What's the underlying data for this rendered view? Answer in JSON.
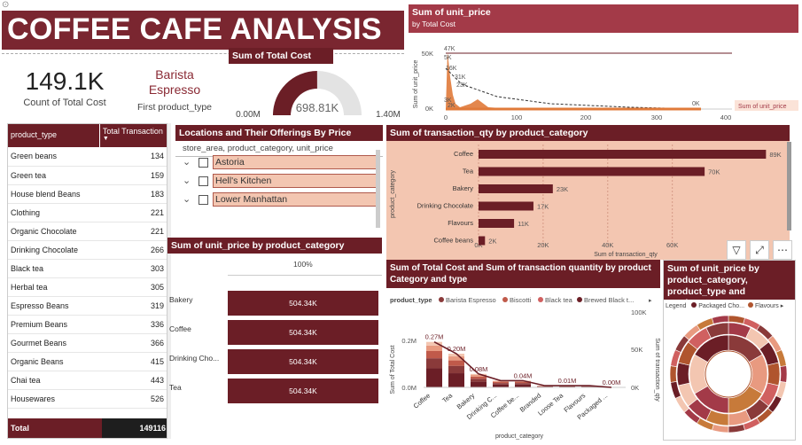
{
  "title": "COFFEE CAFE ANALYSIS",
  "kpi_count": {
    "value": "149.1K",
    "label": "Count of Total Cost"
  },
  "kpi_first": {
    "value_line1": "Barista",
    "value_line2": "Espresso",
    "label": "First product_type"
  },
  "gauge": {
    "title": "Sum of Total Cost",
    "value": "698.81K",
    "min_label": "0.00M",
    "max_label": "1.40M",
    "fraction": 0.499
  },
  "product_table": {
    "col1": "product_type",
    "col2": "Total Transaction",
    "rows": [
      {
        "name": "Green beans",
        "value": "134"
      },
      {
        "name": "Green tea",
        "value": "159"
      },
      {
        "name": "House blend Beans",
        "value": "183"
      },
      {
        "name": "Clothing",
        "value": "221"
      },
      {
        "name": "Organic Chocolate",
        "value": "221"
      },
      {
        "name": "Drinking Chocolate",
        "value": "266"
      },
      {
        "name": "Black tea",
        "value": "303"
      },
      {
        "name": "Herbal tea",
        "value": "305"
      },
      {
        "name": "Espresso Beans",
        "value": "319"
      },
      {
        "name": "Premium Beans",
        "value": "336"
      },
      {
        "name": "Gourmet Beans",
        "value": "366"
      },
      {
        "name": "Organic Beans",
        "value": "415"
      },
      {
        "name": "Chai tea",
        "value": "443"
      },
      {
        "name": "Housewares",
        "value": "526"
      }
    ],
    "total_label": "Total",
    "total_value": "149116"
  },
  "slicer": {
    "title": "Locations and Their Offerings By Price",
    "subtitle": "store_area, product_category, unit_price",
    "items": [
      "Astoria",
      "Hell's Kitchen",
      "Lower Manhattan"
    ]
  },
  "unit_price_chart": {
    "title": "Sum of unit_price",
    "subtitle": "by Total Cost",
    "ylabel": "Sum of unit_price",
    "legend": "Sum of unit_price",
    "y_ticks": [
      "50K",
      "0K"
    ],
    "x_ticks": [
      "0",
      "100",
      "200",
      "300",
      "400"
    ],
    "labels": [
      "47K",
      "5K",
      "16K",
      "31K",
      "23K",
      "3K",
      "2K",
      "0K",
      "0K"
    ]
  },
  "chart_data": [
    {
      "type": "bar",
      "title": "Sum of transaction_qty by product_category",
      "xlabel": "Sum of transaction_qty",
      "ylabel": "product_category",
      "categories": [
        "Coffee",
        "Tea",
        "Bakery",
        "Drinking Chocolate",
        "Flavours",
        "Coffee beans"
      ],
      "values": [
        89,
        70,
        23,
        17,
        11,
        2
      ],
      "value_labels": [
        "89K",
        "70K",
        "23K",
        "17K",
        "11K",
        "2K"
      ],
      "x_ticks": [
        "0K",
        "20K",
        "40K",
        "60K"
      ],
      "xlim": [
        0,
        90
      ]
    },
    {
      "type": "bar",
      "title": "Sum of unit_price by product_category",
      "categories": [
        "Bakery",
        "Coffee",
        "Drinking Cho...",
        "Tea"
      ],
      "values": [
        504.34,
        504.34,
        504.34,
        504.34
      ],
      "value_labels": [
        "504.34K",
        "504.34K",
        "504.34K",
        "504.34K"
      ],
      "header_label": "100%"
    },
    {
      "type": "bar",
      "title": "Sum of Total Cost and Sum of transaction quantity by product Category and type",
      "legend_title": "product_type",
      "legend": [
        "Barista Espresso",
        "Biscotti",
        "Black tea",
        "Brewed Black t..."
      ],
      "legend_colors": [
        "#8a3a3a",
        "#c05a4a",
        "#d06060",
        "#6b1e26"
      ],
      "categories": [
        "Coffee",
        "Tea",
        "Bakery",
        "Drinking C...",
        "Coffee be...",
        "Branded",
        "Loose Tea",
        "Flavours",
        "Packaged ..."
      ],
      "values": [
        0.27,
        0.2,
        0.08,
        0.04,
        0.04,
        0.01,
        0.01,
        0.01,
        0.0
      ],
      "value_labels": [
        "0.27M",
        "0.20M",
        "0.08M",
        "",
        "0.04M",
        "",
        "0.01M",
        "",
        "0.00M"
      ],
      "xlabel": "product_category",
      "ylabel": "Sum of Total Cost",
      "y2label": "Sum of transaction_qty",
      "y_ticks": [
        "0.2M",
        "0.0M"
      ],
      "y2_ticks": [
        "100K",
        "50K",
        "0K"
      ]
    },
    {
      "type": "pie",
      "title": "Sum of unit_price by product_category, product_type and product_...",
      "legend_title": "Legend",
      "legend": [
        "Packaged Cho...",
        "Flavours"
      ],
      "legend_colors": [
        "#6b1e26",
        "#b0552e"
      ]
    }
  ],
  "colors": {
    "dark": "#6b1e26",
    "banner": "#7a2630",
    "peach": "#f3c6b1",
    "accent": "#d4572a"
  }
}
